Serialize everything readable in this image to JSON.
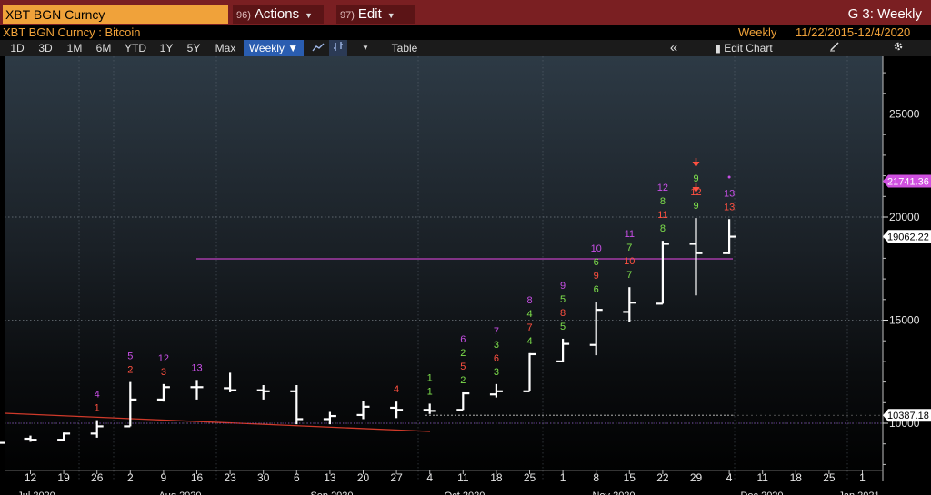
{
  "header": {
    "ticker": "XBT BGN Curncy",
    "actions_num": "96)",
    "actions_label": "Actions",
    "edit_num": "97)",
    "edit_label": "Edit",
    "title": "G 3: Weekly"
  },
  "subheader": {
    "security": "XBT BGN Curncy : Bitcoin",
    "period": "Weekly",
    "range": "11/22/2015-12/4/2020"
  },
  "toolbar": {
    "ranges": [
      "1D",
      "3D",
      "1M",
      "6M",
      "YTD",
      "1Y",
      "5Y",
      "Max"
    ],
    "period_select": "Weekly",
    "period_arrow": "▼",
    "table_label": "Table",
    "collapse_icon": "«",
    "edit_chart_label": "Edit Chart",
    "line_icon": "line-chart-icon",
    "bar_icon": "bar-chart-icon",
    "draw_icon": "draw-icon",
    "gear_icon": "gear-icon"
  },
  "colors": {
    "title_bar": "#7a1f22",
    "ticker_box": "#f0a23a",
    "accent_orange": "#f0a23a",
    "toolbar_active": "#2a5db0",
    "bars": "#ffffff",
    "count_magenta": "#c84fe6",
    "count_red": "#ff5040",
    "count_green": "#7ee04c",
    "resistance_line": "#c040c0",
    "trend_line": "#d03a2a",
    "last_price_tag": "#ffffff",
    "high_tag": "#d050e0"
  },
  "chart_data": {
    "type": "bar",
    "subtype": "ohlc",
    "title": "XBT BGN Curncy : Bitcoin",
    "frequency": "Weekly",
    "x_tick_labels": [
      "12",
      "19",
      "26",
      "2",
      "9",
      "16",
      "23",
      "30",
      "6",
      "13",
      "20",
      "27",
      "4",
      "11",
      "18",
      "25",
      "1",
      "8",
      "15",
      "22",
      "29",
      "4",
      "11",
      "18",
      "25",
      "1"
    ],
    "x_month_labels": [
      "Jul 2020",
      "Aug 2020",
      "Sep 2020",
      "Oct 2020",
      "Nov 2020",
      "Dec 2020",
      "Jan 2021"
    ],
    "y_tick_labels": [
      "10000",
      "15000",
      "20000",
      "25000"
    ],
    "ylim": [
      7000,
      28000
    ],
    "y_axis_side": "right",
    "grid": true,
    "series": [
      {
        "columns": [
          "week",
          "open",
          "high",
          "low",
          "close"
        ],
        "values": [
          [
            "Jul 12",
            9250,
            9400,
            9100,
            9200
          ],
          [
            "Jul 19",
            9200,
            9550,
            9150,
            9500
          ],
          [
            "Jul 26",
            9500,
            10150,
            9300,
            9850
          ],
          [
            "Aug 2",
            9850,
            12000,
            9850,
            11150
          ],
          [
            "Aug 9",
            11150,
            11900,
            11050,
            11750
          ],
          [
            "Aug 16",
            11750,
            12100,
            11150,
            11750
          ],
          [
            "Aug 23",
            11700,
            12450,
            11500,
            11600
          ],
          [
            "Aug 30",
            11600,
            11850,
            11150,
            11550
          ],
          [
            "Sep 6",
            11550,
            11850,
            9950,
            10200
          ],
          [
            "Sep 13",
            10200,
            10550,
            9950,
            10350
          ],
          [
            "Sep 20",
            10400,
            11100,
            10200,
            10800
          ],
          [
            "Sep 27",
            10750,
            11050,
            10250,
            10650
          ],
          [
            "Oct 4",
            10650,
            10950,
            10450,
            10600
          ],
          [
            "Oct 11",
            10650,
            11500,
            10650,
            11450
          ],
          [
            "Oct 18",
            11400,
            11900,
            11250,
            11550
          ],
          [
            "Oct 25",
            11550,
            13400,
            11550,
            13350
          ],
          [
            "Nov 1",
            13000,
            14100,
            12950,
            13850
          ],
          [
            "Nov 8",
            13800,
            15900,
            13300,
            15500
          ],
          [
            "Nov 15",
            15400,
            16600,
            14900,
            15850
          ],
          [
            "Nov 22",
            15800,
            18850,
            15800,
            18700
          ],
          [
            "Nov 29",
            18700,
            19950,
            16200,
            18250
          ],
          [
            "Dec 4",
            18250,
            19900,
            18200,
            19050
          ]
        ]
      }
    ],
    "annotations": {
      "last_price": "19062.22",
      "high_level": "21741.36",
      "support_level": "10387.18",
      "sequential_counts": [
        {
          "week": "Jul 26",
          "labels": [
            [
              "4",
              "magenta"
            ],
            [
              "1",
              "red"
            ]
          ]
        },
        {
          "week": "Aug 2",
          "labels": [
            [
              "5",
              "magenta"
            ],
            [
              "2",
              "red"
            ]
          ]
        },
        {
          "week": "Aug 9",
          "labels": [
            [
              "12",
              "magenta"
            ],
            [
              "3",
              "red"
            ]
          ]
        },
        {
          "week": "Aug 16",
          "labels": [
            [
              "13",
              "magenta"
            ]
          ]
        },
        {
          "week": "Sep 27",
          "labels": [
            [
              "4",
              "red"
            ]
          ]
        },
        {
          "week": "Oct 4",
          "labels": [
            [
              "1",
              "green"
            ],
            [
              "1",
              "green"
            ]
          ]
        },
        {
          "week": "Oct 11",
          "labels": [
            [
              "6",
              "magenta"
            ],
            [
              "2",
              "green"
            ],
            [
              "5",
              "red"
            ],
            [
              "2",
              "green"
            ]
          ]
        },
        {
          "week": "Oct 18",
          "labels": [
            [
              "7",
              "magenta"
            ],
            [
              "3",
              "green"
            ],
            [
              "6",
              "red"
            ],
            [
              "3",
              "green"
            ]
          ]
        },
        {
          "week": "Oct 25",
          "labels": [
            [
              "8",
              "magenta"
            ],
            [
              "4",
              "green"
            ],
            [
              "7",
              "red"
            ],
            [
              "4",
              "green"
            ]
          ]
        },
        {
          "week": "Nov 1",
          "labels": [
            [
              "9",
              "magenta"
            ],
            [
              "5",
              "green"
            ],
            [
              "8",
              "red"
            ],
            [
              "5",
              "green"
            ]
          ]
        },
        {
          "week": "Nov 8",
          "labels": [
            [
              "10",
              "magenta"
            ],
            [
              "6",
              "green"
            ],
            [
              "9",
              "red"
            ],
            [
              "6",
              "green"
            ]
          ]
        },
        {
          "week": "Nov 15",
          "labels": [
            [
              "11",
              "magenta"
            ],
            [
              "7",
              "green"
            ],
            [
              "10",
              "red"
            ],
            [
              "7",
              "green"
            ]
          ]
        },
        {
          "week": "Nov 22",
          "labels": [
            [
              "12",
              "magenta"
            ],
            [
              "8",
              "green"
            ],
            [
              "11",
              "red"
            ],
            [
              "8",
              "green"
            ]
          ]
        },
        {
          "week": "Nov 29",
          "labels": [
            [
              "9",
              "green"
            ],
            [
              "12",
              "red"
            ],
            [
              "9",
              "green"
            ]
          ]
        },
        {
          "week": "Dec 4",
          "labels": [
            [
              "13",
              "magenta"
            ],
            [
              "13",
              "red"
            ]
          ]
        }
      ]
    }
  }
}
